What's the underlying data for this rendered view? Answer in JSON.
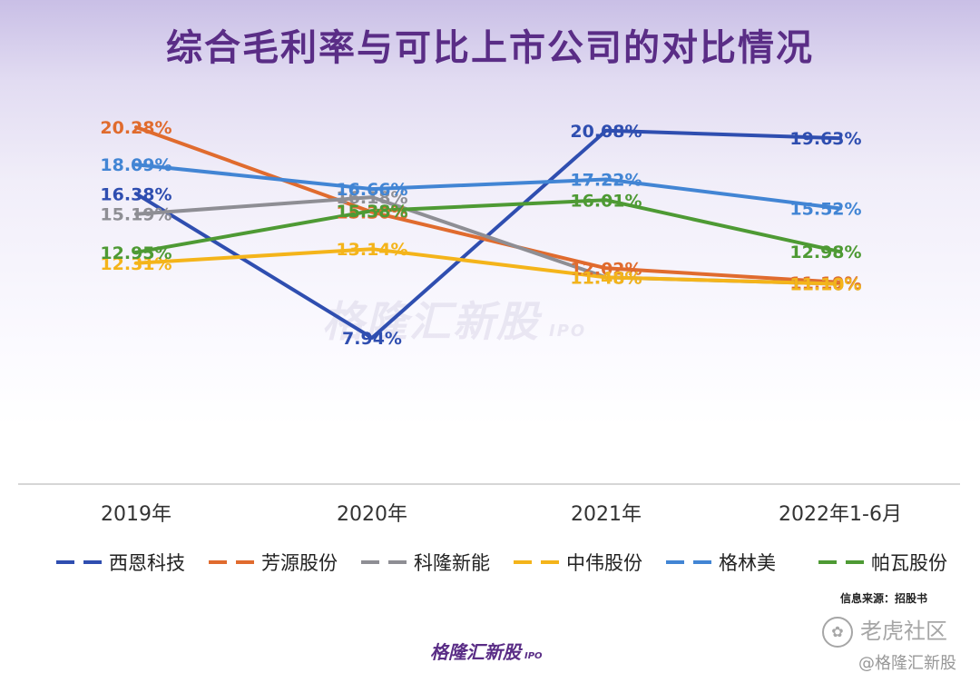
{
  "chart_data": {
    "type": "line",
    "title": "综合毛利率与可比上市公司的对比情况",
    "categories": [
      "2019年",
      "2020年",
      "2021年",
      "2022年1-6月"
    ],
    "series": [
      {
        "name": "西恩科技",
        "color": "#2f4eb0",
        "values": [
          16.38,
          7.94,
          20.08,
          19.63
        ],
        "labels": [
          "16.38%",
          "7.94%",
          "20.08%",
          "19.63%"
        ]
      },
      {
        "name": "芳源股份",
        "color": "#e06b2e",
        "values": [
          20.28,
          15.3,
          12.02,
          11.19
        ],
        "labels": [
          "20.28%",
          "15.30%",
          "12.02%",
          "11.19%"
        ]
      },
      {
        "name": "科隆新能",
        "color": "#8e8e94",
        "values": [
          15.19,
          16.18,
          11.48,
          11.1
        ],
        "labels": [
          "15.19%",
          "16.18%",
          "11.48%",
          "11.10%"
        ]
      },
      {
        "name": "中伟股份",
        "color": "#f4b41a",
        "values": [
          12.31,
          13.14,
          11.48,
          11.1
        ],
        "labels": [
          "12.31%",
          "13.14%",
          "11.48%",
          "11.10%"
        ]
      },
      {
        "name": "格林美",
        "color": "#4285d4",
        "values": [
          18.09,
          16.66,
          17.22,
          15.52
        ],
        "labels": [
          "18.09%",
          "16.66%",
          "17.22%",
          "15.52%"
        ]
      },
      {
        "name": "帕瓦股份",
        "color": "#4e9a34",
        "values": [
          12.95,
          15.38,
          16.01,
          12.98
        ],
        "labels": [
          "12.95%",
          "15.38%",
          "16.01%",
          "12.98%"
        ]
      }
    ],
    "ylim": [
      0,
      22
    ],
    "grid": false,
    "legend_position": "bottom",
    "legend_style": "dashed"
  },
  "source_note": "信息来源：招股书",
  "footer_logo": {
    "text": "格隆汇新股",
    "sub": "IPO"
  },
  "watermark_center": {
    "text": "格隆汇新股",
    "sub": "IPO"
  },
  "tiger_watermark": {
    "icon": "paw-icon",
    "text": "老虎社区"
  },
  "author_watermark": "@格隆汇新股"
}
